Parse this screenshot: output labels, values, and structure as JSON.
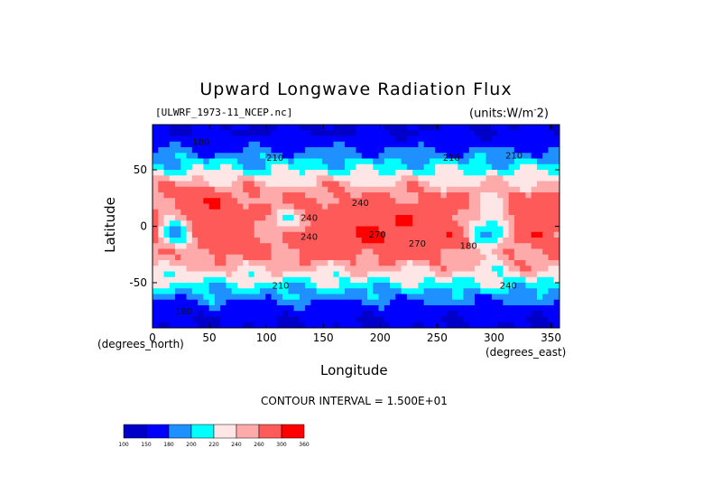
{
  "chart_data": {
    "type": "heatmap",
    "title": "Upward Longwave Radiation Flux",
    "file_label": "[ULWRF_1973-11_NCEP.nc]",
    "units_label": "(units:W/m^2)",
    "xlabel": "Longitude",
    "ylabel": "Latitude",
    "x_unit_label": "(degrees_east)",
    "y_unit_label": "(degrees_north)",
    "xlim": [
      0,
      357.5
    ],
    "ylim": [
      -90,
      90
    ],
    "x_ticks": [
      0,
      50,
      100,
      150,
      200,
      250,
      300,
      350
    ],
    "y_ticks": [
      -50,
      0,
      50
    ],
    "contour_interval_label": "CONTOUR INTERVAL = 1.500E+01",
    "contour_labels": [
      "180",
      "210",
      "210",
      "240",
      "240",
      "240",
      "270",
      "270",
      "210",
      "180",
      "210",
      "240",
      "180"
    ],
    "colorbar": {
      "levels": [
        100,
        150,
        180,
        200,
        220,
        240,
        260,
        300,
        360
      ],
      "tick_labels": [
        "100",
        "150",
        "180",
        "200",
        "220",
        "240",
        "260",
        "300",
        "360"
      ],
      "colors": [
        "#0000c8",
        "#0000ff",
        "#1e90ff",
        "#00ffff",
        "#ffe6e6",
        "#ffaaaa",
        "#ff5a5a",
        "#ff0000"
      ]
    },
    "features": [
      {
        "name": "polar-north",
        "note": "low values ~150-180 near 90N"
      },
      {
        "name": "polar-south",
        "note": "low values ~150-180 near 90S"
      },
      {
        "name": "tropics",
        "note": "high values ~260-300 between 30S and 30N"
      },
      {
        "name": "convective-minima",
        "note": "low values ~180-210 over Africa (~15E), Maritime Continent (~110E) and South America (~295E)"
      }
    ]
  }
}
